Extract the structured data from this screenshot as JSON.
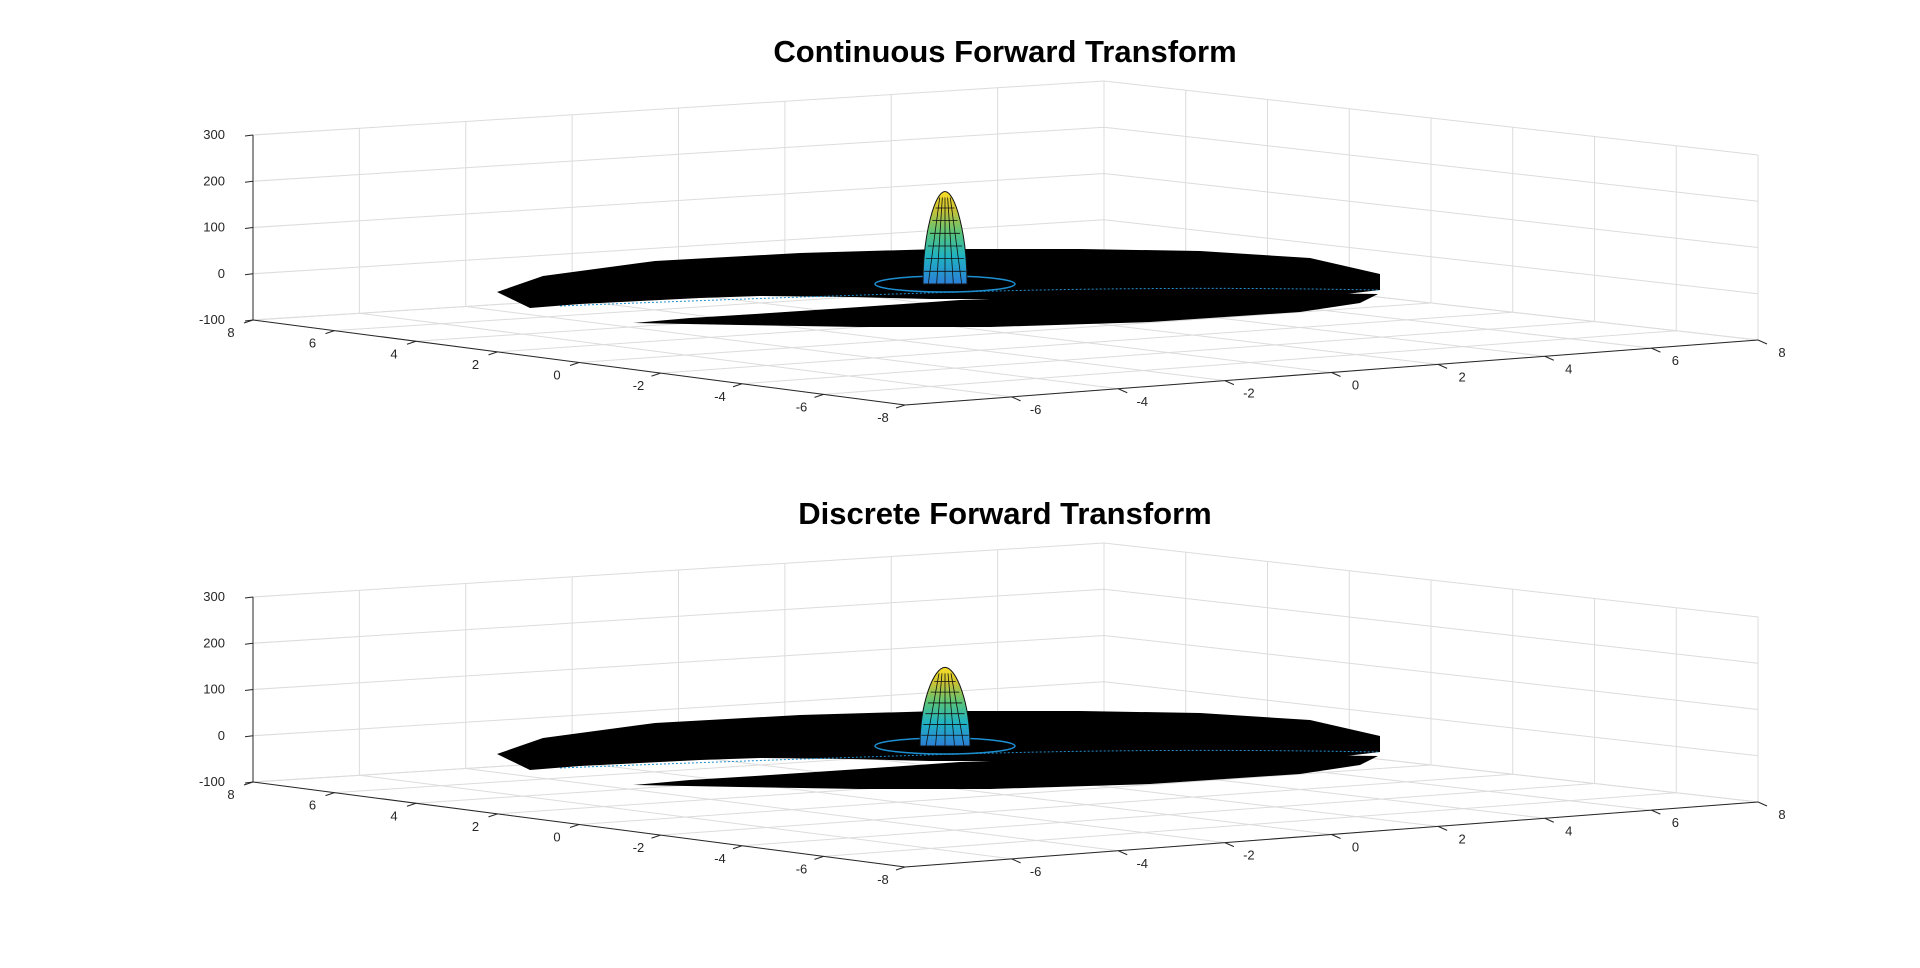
{
  "colors": {
    "background": "#ffffff",
    "grid": "#dcdcdc",
    "axis": "#262626",
    "surface_dark": "#000000",
    "colormap": [
      "#3a2f9a",
      "#2b7fd6",
      "#1fb3c2",
      "#58c47a",
      "#c9c234",
      "#f9de26"
    ]
  },
  "chart_data": [
    {
      "type": "surface3d",
      "title": "Continuous Forward Transform",
      "xlabel": "",
      "ylabel": "",
      "zlabel": "",
      "xlim": [
        -8,
        8
      ],
      "ylim": [
        -8,
        8
      ],
      "zlim": [
        -100,
        300
      ],
      "x_ticks": [
        "-6",
        "-4",
        "-2",
        "0",
        "2",
        "4",
        "6",
        "8"
      ],
      "y_ticks": [
        "8",
        "6",
        "4",
        "2",
        "0",
        "-2",
        "-4",
        "-6",
        "-8"
      ],
      "z_ticks": [
        "300",
        "200",
        "100",
        "0",
        "-100"
      ],
      "grid": true,
      "peak": {
        "x": 0,
        "y": 0,
        "z": 200
      }
    },
    {
      "type": "surface3d",
      "title": "Discrete Forward Transform",
      "xlabel": "",
      "ylabel": "",
      "zlabel": "",
      "xlim": [
        -8,
        8
      ],
      "ylim": [
        -8,
        8
      ],
      "zlim": [
        -100,
        300
      ],
      "x_ticks": [
        "-6",
        "-4",
        "-2",
        "0",
        "2",
        "4",
        "6",
        "8"
      ],
      "y_ticks": [
        "8",
        "6",
        "4",
        "2",
        "0",
        "-2",
        "-4",
        "-6",
        "-8"
      ],
      "z_ticks": [
        "300",
        "200",
        "100",
        "0",
        "-100"
      ],
      "grid": true,
      "peak": {
        "x": 0,
        "y": 0,
        "z": 170
      }
    }
  ]
}
